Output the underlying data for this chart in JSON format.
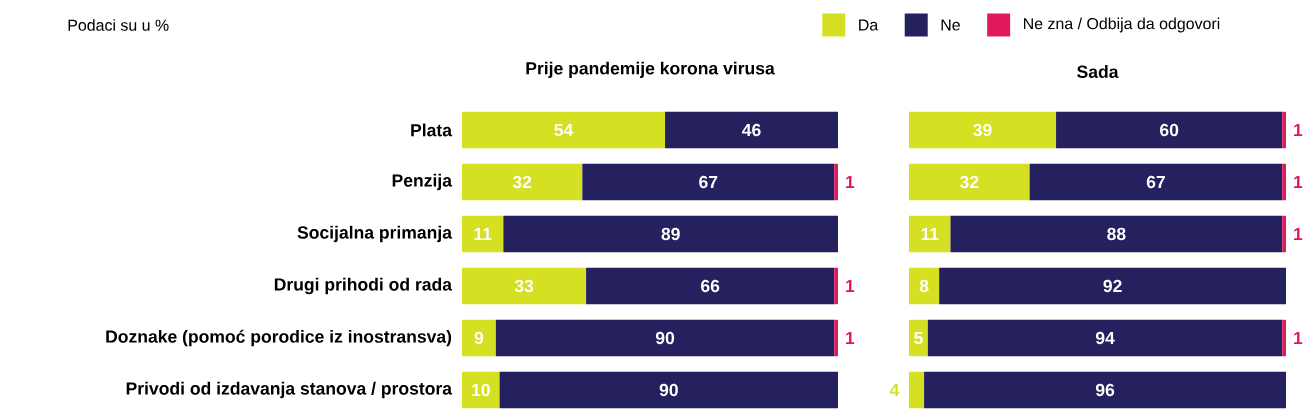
{
  "chart_data": [
    {
      "type": "bar",
      "orientation": "horizontal",
      "stacked": true,
      "title": "Prije pandemije korona virusa",
      "categories": [
        "Plata",
        "Penzija",
        "Socijalna primanja",
        "Drugi prihodi od rada",
        "Doznake (pomoć porodice iz inostransva)",
        "Privodi od izdavanja stanova / prostora"
      ],
      "xlim": [
        0,
        100
      ],
      "tick_labels": "y",
      "data_labels": true,
      "annotations": [
        "Podaci su u %"
      ],
      "series": [
        {
          "color": "#d4e021",
          "values": [
            54,
            32,
            11,
            33,
            9,
            10
          ]
        },
        {
          "color": "#25215e",
          "values": [
            46,
            67,
            89,
            66,
            90,
            90
          ]
        },
        {
          "color": "#e0195a",
          "values": [
            null,
            1,
            null,
            1,
            1,
            null
          ]
        }
      ]
    },
    {
      "type": "bar",
      "orientation": "horizontal",
      "stacked": true,
      "title": "Sada",
      "categories": [
        null,
        null,
        null,
        null,
        null,
        null
      ],
      "xlim": [
        0,
        100
      ],
      "tick_labels": false,
      "data_labels": true,
      "legend": "top",
      "series": [
        {
          "name": "Da",
          "color": "#d4e021",
          "values": [
            39,
            32,
            11,
            8,
            5,
            4
          ]
        },
        {
          "name": "Ne",
          "color": "#25215e",
          "values": [
            60,
            67,
            88,
            92,
            94,
            96
          ]
        },
        {
          "name": "Ne zna / Odbija da odgovori",
          "color": "#e0195a",
          "values": [
            1,
            1,
            1,
            null,
            1,
            null
          ]
        }
      ]
    }
  ]
}
